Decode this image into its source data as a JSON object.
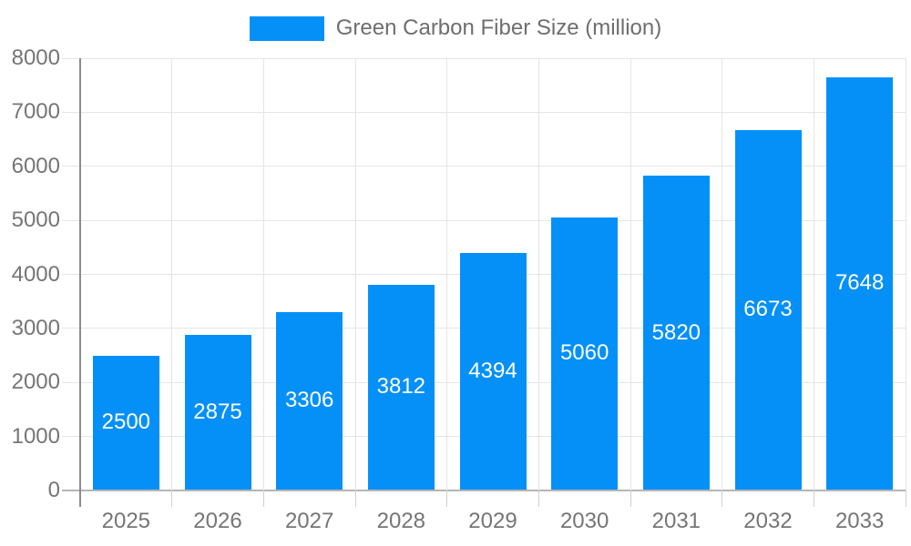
{
  "legend": {
    "label": "Green Carbon Fiber Size (million)"
  },
  "colors": {
    "bar": "#0590F8",
    "axis_line": "#8c8c8c",
    "baseline": "#b5b5b5",
    "gridline": "#e5e5e5",
    "tick": "#d0d0d0",
    "axis_text": "#757575",
    "legend_text": "#6e6e6e",
    "value_label_text": "#ffffff",
    "background": "#ffffff"
  },
  "chart_data": {
    "type": "bar",
    "title": "Green Carbon Fiber Size (million)",
    "series_name": "Green Carbon Fiber Size (million)",
    "categories": [
      "2025",
      "2026",
      "2027",
      "2028",
      "2029",
      "2030",
      "2031",
      "2032",
      "2033"
    ],
    "values": [
      2500,
      2875,
      3306,
      3812,
      4394,
      5060,
      5820,
      6673,
      7648
    ],
    "xlabel": "",
    "ylabel": "",
    "ylim": [
      0,
      8000
    ],
    "yticks": [
      0,
      1000,
      2000,
      3000,
      4000,
      5000,
      6000,
      7000,
      8000
    ],
    "grid": true,
    "legend_position": "top-center",
    "value_labels_position": "inside-center"
  }
}
